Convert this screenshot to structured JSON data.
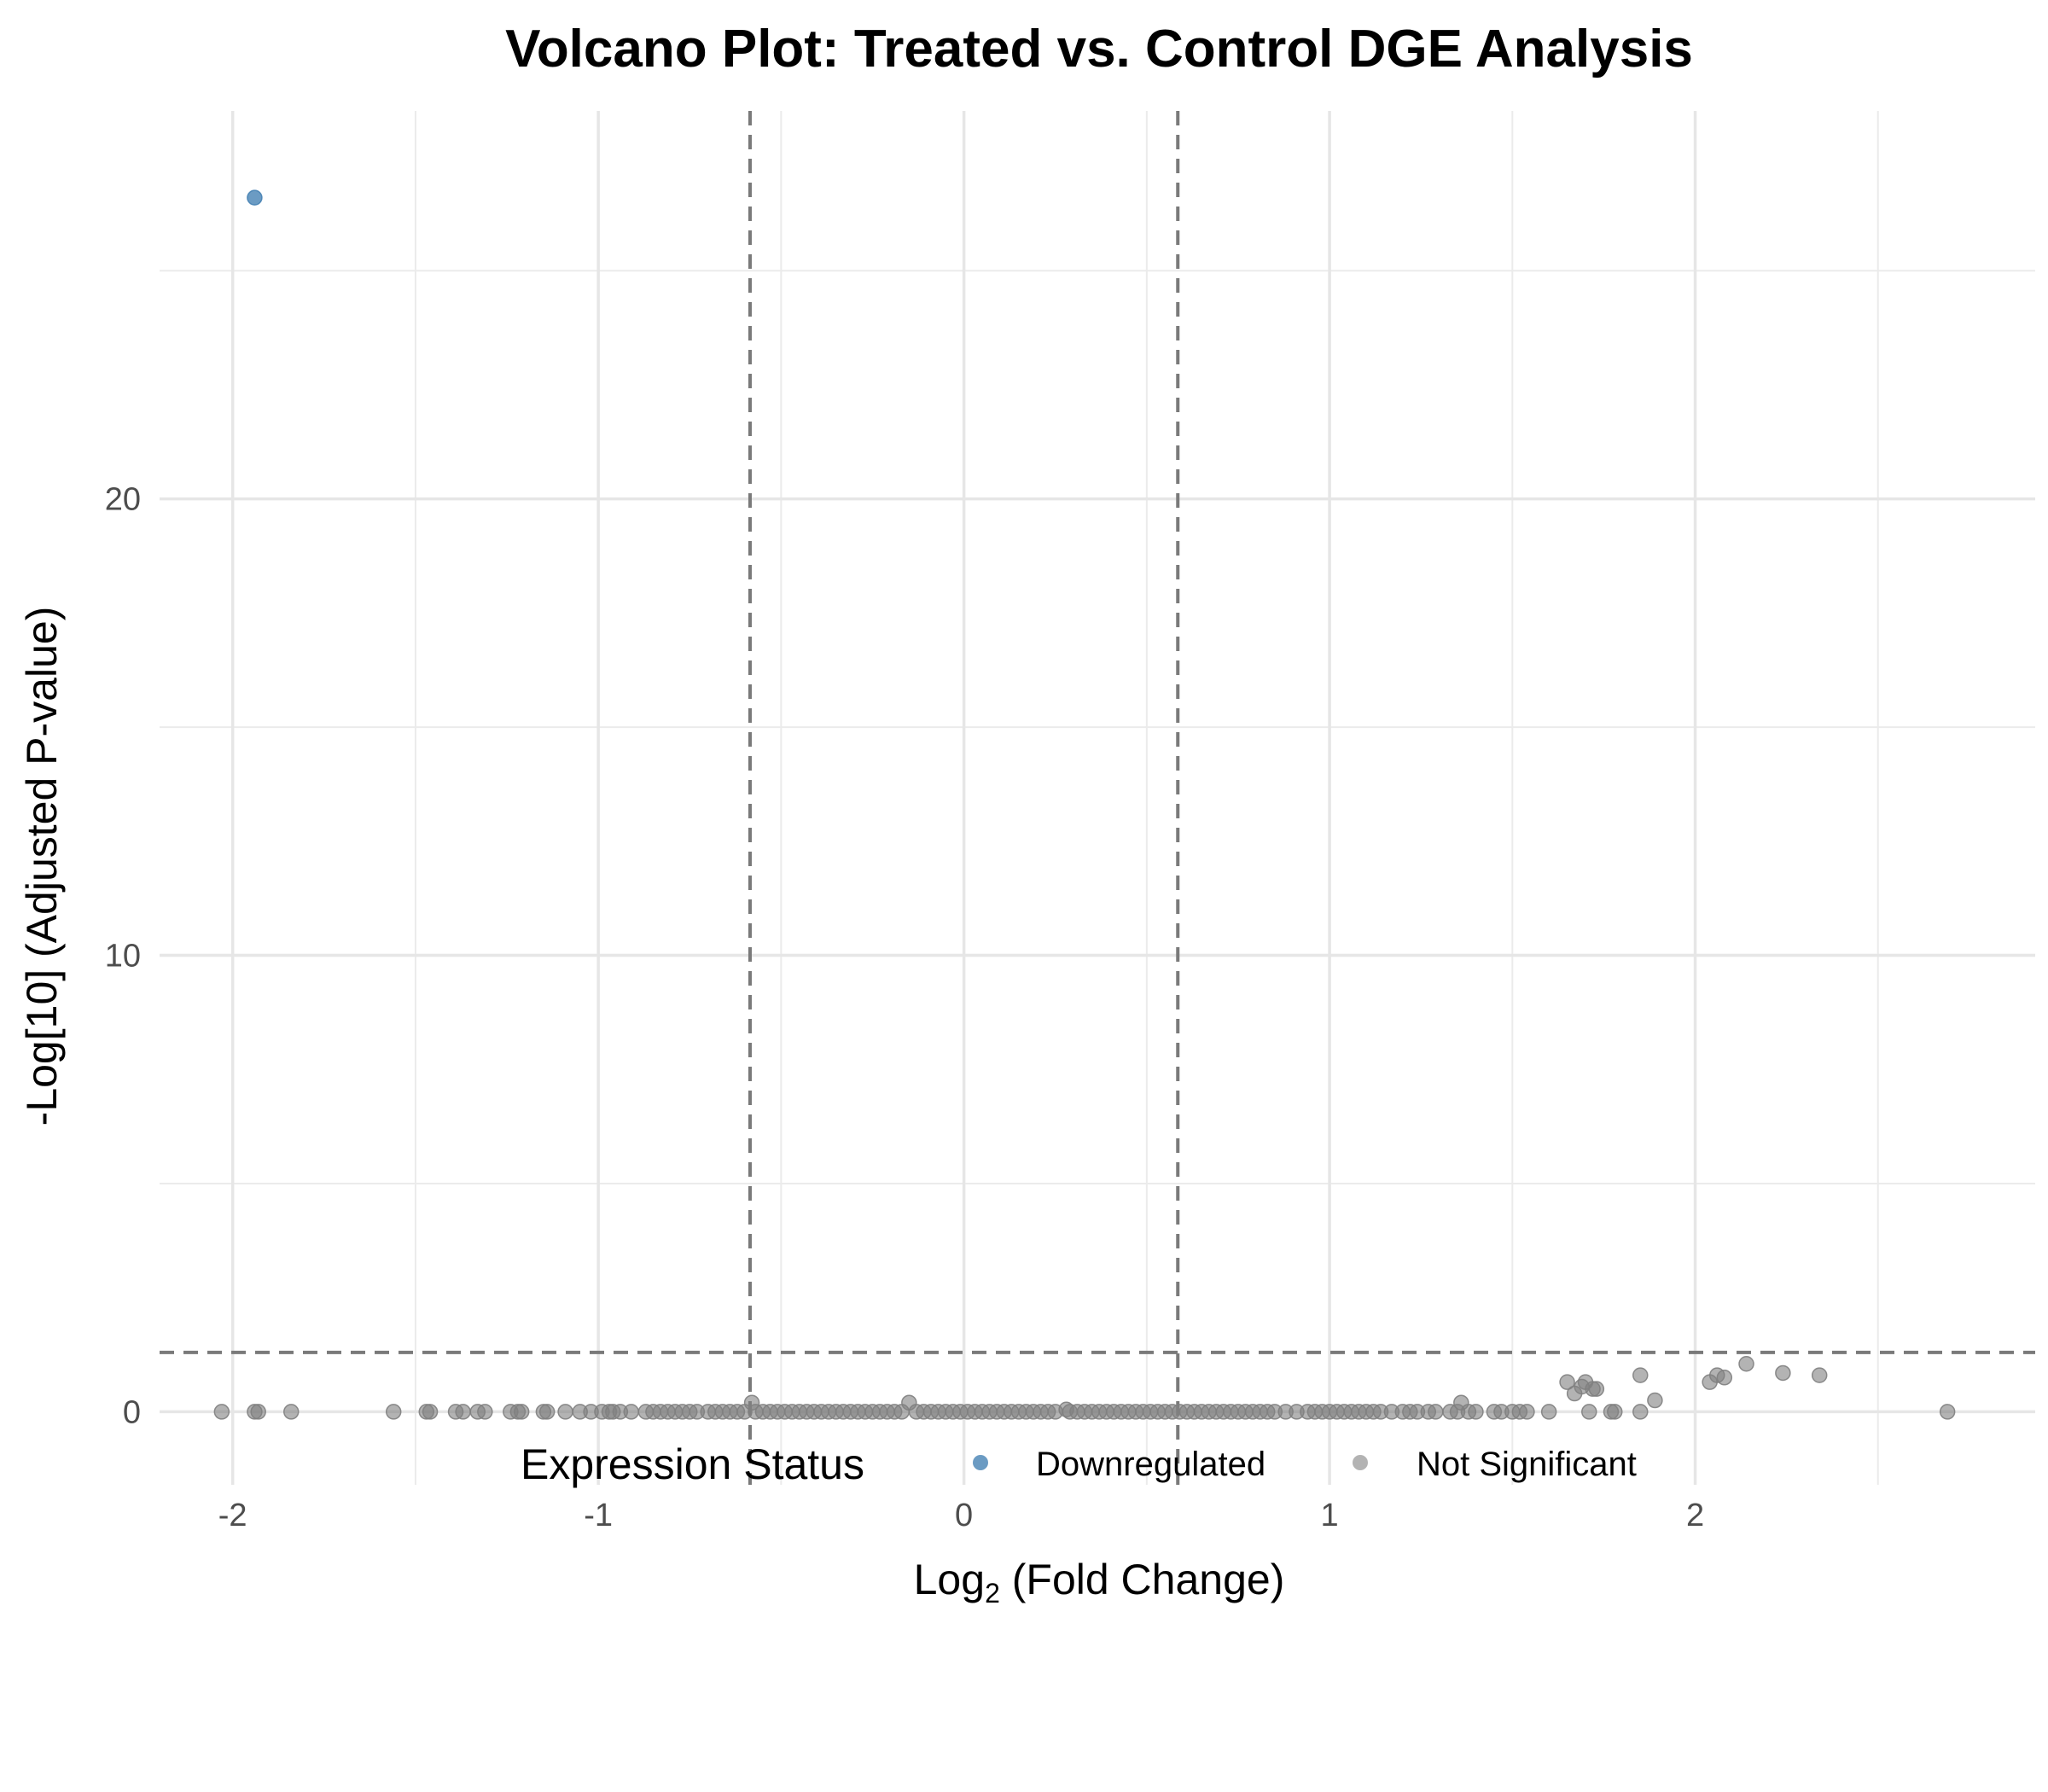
{
  "chart_data": {
    "type": "scatter",
    "title": "Volcano Plot: Treated vs. Control DGE Analysis",
    "xlabel_main": "Log",
    "xlabel_sub": "2",
    "xlabel_rest": " (Fold Change)",
    "ylabel": "-Log[10] (Adjusted P-value)",
    "xlim": [
      -2.2,
      2.93
    ],
    "ylim": [
      -1.6,
      28.5
    ],
    "x_ticks": [
      {
        "value": -2,
        "label": "-2"
      },
      {
        "value": -1,
        "label": "-1"
      },
      {
        "value": 0,
        "label": "0"
      },
      {
        "value": 1,
        "label": "1"
      },
      {
        "value": 2,
        "label": "2"
      }
    ],
    "y_ticks": [
      {
        "value": 0,
        "label": "0"
      },
      {
        "value": 10,
        "label": "10"
      },
      {
        "value": 20,
        "label": "20"
      }
    ],
    "x_minor_gridlines": [
      -1.5,
      -0.5,
      0.5,
      1.5,
      2.5
    ],
    "y_minor_gridlines": [
      5,
      15,
      25
    ],
    "grid": true,
    "thresholds": {
      "log2fc": [
        -0.585,
        0.585
      ],
      "neg_log10_padj": 1.3
    },
    "legend": {
      "title": "Expression Status",
      "placement": "bottom",
      "entries": [
        {
          "name": "Downregulated",
          "color": "#4682B4"
        },
        {
          "name": "Not Significant",
          "color": "#808080"
        }
      ]
    },
    "series": [
      {
        "name": "Downregulated",
        "color": "#4682B4",
        "points": [
          [
            -1.94,
            26.6
          ]
        ]
      },
      {
        "name": "Not Significant",
        "color": "#808080",
        "points": [
          [
            -2.03,
            0
          ],
          [
            -1.94,
            0
          ],
          [
            -1.93,
            0
          ],
          [
            -1.84,
            0
          ],
          [
            -1.56,
            0
          ],
          [
            -1.47,
            0
          ],
          [
            -1.46,
            0
          ],
          [
            -1.39,
            0
          ],
          [
            -1.37,
            0
          ],
          [
            -1.33,
            0
          ],
          [
            -1.31,
            0
          ],
          [
            -1.24,
            0
          ],
          [
            -1.22,
            0
          ],
          [
            -1.21,
            0
          ],
          [
            -1.15,
            0
          ],
          [
            -1.14,
            0
          ],
          [
            -1.09,
            0
          ],
          [
            -1.05,
            0
          ],
          [
            -1.02,
            0
          ],
          [
            -0.99,
            0
          ],
          [
            -0.97,
            0
          ],
          [
            -0.96,
            0
          ],
          [
            -0.94,
            0
          ],
          [
            -0.91,
            0
          ],
          [
            -0.87,
            0
          ],
          [
            -0.85,
            0
          ],
          [
            -0.83,
            0
          ],
          [
            -0.81,
            0
          ],
          [
            -0.79,
            0
          ],
          [
            -0.77,
            0
          ],
          [
            -0.75,
            0
          ],
          [
            -0.73,
            0
          ],
          [
            -0.7,
            0
          ],
          [
            -0.68,
            0
          ],
          [
            -0.66,
            0
          ],
          [
            -0.64,
            0
          ],
          [
            -0.62,
            0
          ],
          [
            -0.6,
            0
          ],
          [
            -0.58,
            0.2
          ],
          [
            -0.57,
            0
          ],
          [
            -0.55,
            0
          ],
          [
            -0.53,
            0
          ],
          [
            -0.51,
            0
          ],
          [
            -0.49,
            0
          ],
          [
            -0.47,
            0
          ],
          [
            -0.45,
            0
          ],
          [
            -0.43,
            0
          ],
          [
            -0.41,
            0
          ],
          [
            -0.39,
            0
          ],
          [
            -0.37,
            0
          ],
          [
            -0.35,
            0
          ],
          [
            -0.33,
            0
          ],
          [
            -0.31,
            0
          ],
          [
            -0.29,
            0
          ],
          [
            -0.27,
            0
          ],
          [
            -0.25,
            0
          ],
          [
            -0.23,
            0
          ],
          [
            -0.21,
            0
          ],
          [
            -0.19,
            0
          ],
          [
            -0.15,
            0.2
          ],
          [
            -0.17,
            0
          ],
          [
            -0.13,
            0
          ],
          [
            -0.11,
            0
          ],
          [
            -0.09,
            0
          ],
          [
            -0.07,
            0
          ],
          [
            -0.05,
            0
          ],
          [
            -0.03,
            0
          ],
          [
            -0.01,
            0
          ],
          [
            0.01,
            0
          ],
          [
            0.03,
            0
          ],
          [
            0.05,
            0
          ],
          [
            0.07,
            0
          ],
          [
            0.09,
            0
          ],
          [
            0.11,
            0
          ],
          [
            0.13,
            0
          ],
          [
            0.15,
            0
          ],
          [
            0.17,
            0
          ],
          [
            0.19,
            0
          ],
          [
            0.21,
            0
          ],
          [
            0.23,
            0
          ],
          [
            0.25,
            0
          ],
          [
            0.28,
            0.05
          ],
          [
            0.29,
            0
          ],
          [
            0.31,
            0
          ],
          [
            0.33,
            0
          ],
          [
            0.35,
            0
          ],
          [
            0.37,
            0
          ],
          [
            0.39,
            0
          ],
          [
            0.41,
            0
          ],
          [
            0.43,
            0
          ],
          [
            0.45,
            0
          ],
          [
            0.47,
            0
          ],
          [
            0.49,
            0
          ],
          [
            0.51,
            0
          ],
          [
            0.53,
            0
          ],
          [
            0.55,
            0
          ],
          [
            0.57,
            0
          ],
          [
            0.59,
            0
          ],
          [
            0.61,
            0
          ],
          [
            0.63,
            0
          ],
          [
            0.65,
            0
          ],
          [
            0.67,
            0
          ],
          [
            0.69,
            0
          ],
          [
            0.71,
            0
          ],
          [
            0.73,
            0
          ],
          [
            0.75,
            0
          ],
          [
            0.77,
            0
          ],
          [
            0.79,
            0
          ],
          [
            0.81,
            0
          ],
          [
            0.83,
            0
          ],
          [
            0.85,
            0
          ],
          [
            0.88,
            0
          ],
          [
            0.91,
            0
          ],
          [
            0.94,
            0
          ],
          [
            0.96,
            0
          ],
          [
            0.98,
            0
          ],
          [
            1.0,
            0
          ],
          [
            1.02,
            0
          ],
          [
            1.04,
            0
          ],
          [
            1.06,
            0
          ],
          [
            1.08,
            0
          ],
          [
            1.1,
            0
          ],
          [
            1.12,
            0
          ],
          [
            1.14,
            0
          ],
          [
            1.17,
            0
          ],
          [
            1.2,
            0
          ],
          [
            1.22,
            0
          ],
          [
            1.24,
            0
          ],
          [
            1.27,
            0
          ],
          [
            1.29,
            0
          ],
          [
            1.33,
            0
          ],
          [
            1.35,
            0
          ],
          [
            1.36,
            0.2
          ],
          [
            1.38,
            0
          ],
          [
            1.4,
            0
          ],
          [
            1.45,
            0
          ],
          [
            1.47,
            0
          ],
          [
            1.5,
            0
          ],
          [
            1.52,
            0
          ],
          [
            1.54,
            0
          ],
          [
            1.6,
            0
          ],
          [
            1.65,
            0.65
          ],
          [
            1.67,
            0.4
          ],
          [
            1.69,
            0.55
          ],
          [
            1.7,
            0.65
          ],
          [
            1.71,
            0
          ],
          [
            1.72,
            0.5
          ],
          [
            1.73,
            0.5
          ],
          [
            1.77,
            0
          ],
          [
            1.78,
            0
          ],
          [
            1.85,
            0.8
          ],
          [
            1.85,
            0
          ],
          [
            1.89,
            0.25
          ],
          [
            2.04,
            0.65
          ],
          [
            2.06,
            0.8
          ],
          [
            2.08,
            0.75
          ],
          [
            2.14,
            1.05
          ],
          [
            2.24,
            0.85
          ],
          [
            2.34,
            0.8
          ],
          [
            2.69,
            0
          ]
        ]
      }
    ]
  }
}
